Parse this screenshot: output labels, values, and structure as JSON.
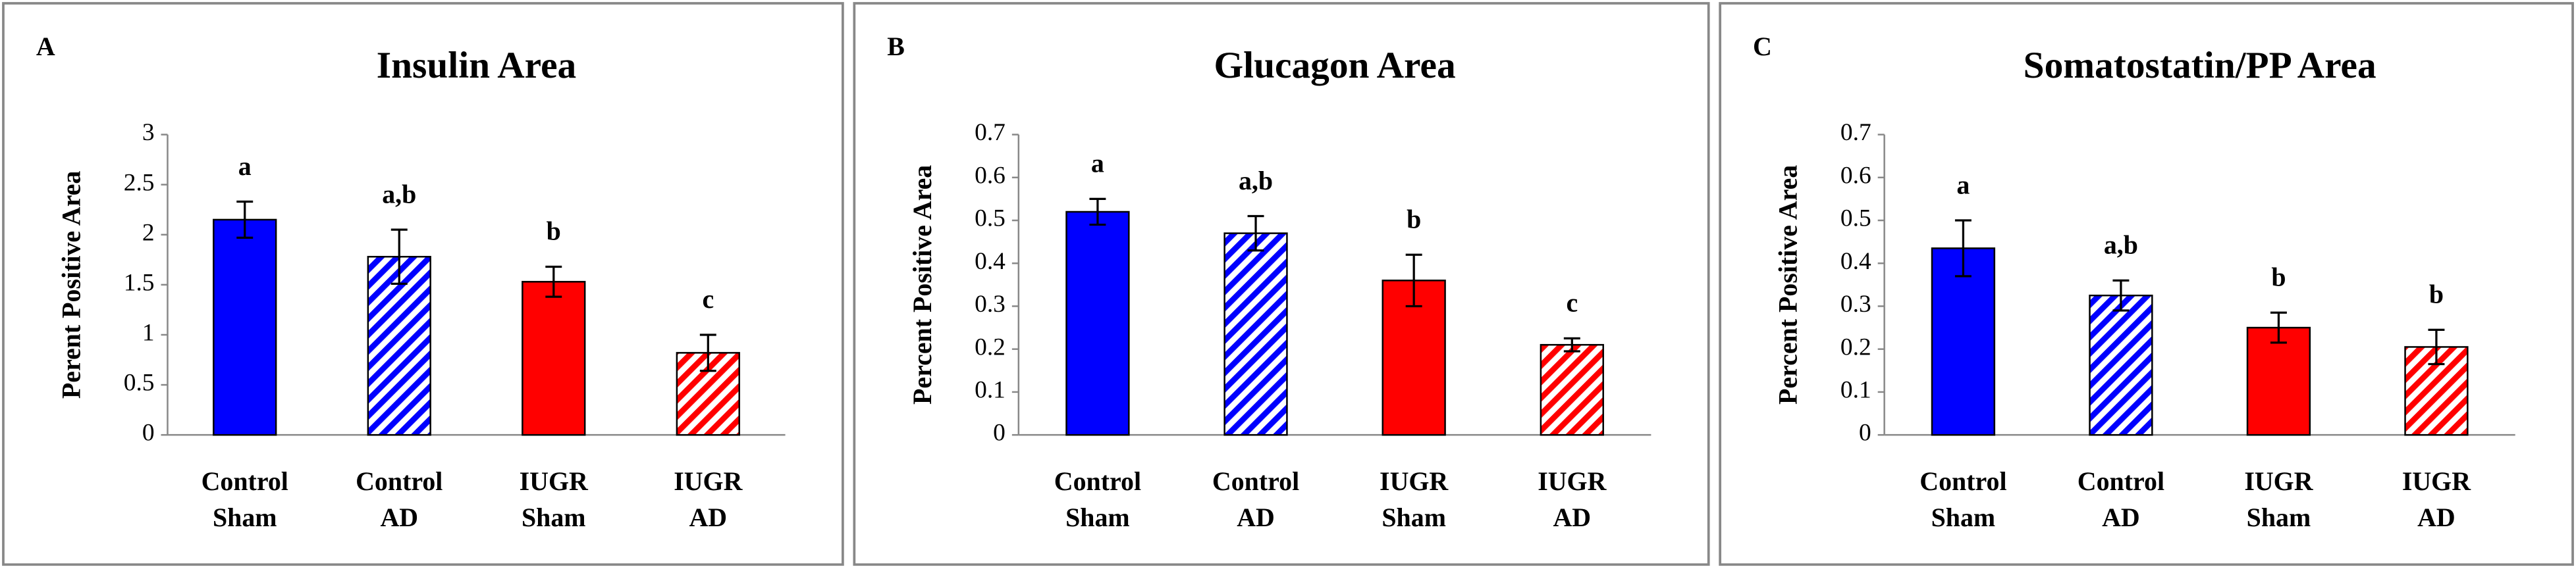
{
  "chart_data": [
    {
      "type": "bar",
      "panel": "A",
      "title": "Insulin Area",
      "y_label": "Perent Positive Area",
      "categories": [
        "Control Sham",
        "Control AD",
        "IUGR Sham",
        "IUGR AD"
      ],
      "values": [
        2.15,
        1.78,
        1.53,
        0.82
      ],
      "errors": [
        0.18,
        0.27,
        0.15,
        0.18
      ],
      "annotations": [
        "a",
        "a,b",
        "b",
        "c"
      ],
      "colors": [
        "#0000ff",
        "#0000ff",
        "#ff0000",
        "#ff0000"
      ],
      "patterns": [
        "solid",
        "hatch",
        "solid",
        "hatch"
      ],
      "ylim": [
        0,
        3
      ],
      "yticks": [
        0,
        0.5,
        1,
        1.5,
        2,
        2.5,
        3
      ],
      "grid": false
    },
    {
      "type": "bar",
      "panel": "B",
      "title": "Glucagon Area",
      "y_label": "Percent Positive Area",
      "categories": [
        "Control Sham",
        "Control AD",
        "IUGR Sham",
        "IUGR AD"
      ],
      "values": [
        0.52,
        0.47,
        0.36,
        0.21
      ],
      "errors": [
        0.03,
        0.04,
        0.06,
        0.015
      ],
      "annotations": [
        "a",
        "a,b",
        "b",
        "c"
      ],
      "colors": [
        "#0000ff",
        "#0000ff",
        "#ff0000",
        "#ff0000"
      ],
      "patterns": [
        "solid",
        "hatch",
        "solid",
        "hatch"
      ],
      "ylim": [
        0,
        0.7
      ],
      "yticks": [
        0,
        0.1,
        0.2,
        0.3,
        0.4,
        0.5,
        0.6,
        0.7
      ],
      "grid": false
    },
    {
      "type": "bar",
      "panel": "C",
      "title": "Somatostatin/PP Area",
      "y_label": "Percent Positive Area",
      "categories": [
        "Control Sham",
        "Control AD",
        "IUGR Sham",
        "IUGR AD"
      ],
      "values": [
        0.435,
        0.325,
        0.25,
        0.205
      ],
      "errors": [
        0.065,
        0.035,
        0.035,
        0.04
      ],
      "annotations": [
        "a",
        "a,b",
        "b",
        "b"
      ],
      "colors": [
        "#0000ff",
        "#0000ff",
        "#ff0000",
        "#ff0000"
      ],
      "patterns": [
        "solid",
        "hatch",
        "solid",
        "hatch"
      ],
      "ylim": [
        0,
        0.7
      ],
      "yticks": [
        0,
        0.1,
        0.2,
        0.3,
        0.4,
        0.5,
        0.6,
        0.7
      ],
      "grid": false
    }
  ]
}
